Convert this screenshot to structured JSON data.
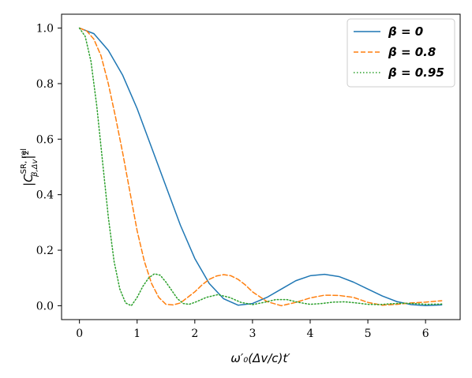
{
  "chart_data": {
    "type": "line",
    "xlabel": "ω′₀(Δv/c)t′",
    "ylabel": "|C^{SR, rel}_{β,Δv}|²",
    "ylabel_parts": {
      "lead": "|C",
      "sup": "SR, rel",
      "sub": "β,Δv",
      "tail": "|²"
    },
    "xlim": [
      -0.31,
      6.6
    ],
    "ylim": [
      -0.05,
      1.05
    ],
    "x_ticks": [
      0,
      1,
      2,
      3,
      4,
      5,
      6
    ],
    "y_ticks": [
      0.0,
      0.2,
      0.4,
      0.6,
      0.8,
      1.0
    ],
    "x_tick_labels": [
      "0",
      "1",
      "2",
      "3",
      "4",
      "5",
      "6"
    ],
    "y_tick_labels": [
      "0.0",
      "0.2",
      "0.4",
      "0.6",
      "0.8",
      "1.0"
    ],
    "grid": false,
    "legend_position": "top-right",
    "series": [
      {
        "name": "β = 0",
        "color": "#1f77b4",
        "style": "solid",
        "x": [
          0,
          0.25,
          0.5,
          0.75,
          1.0,
          1.25,
          1.5,
          1.75,
          2.0,
          2.25,
          2.5,
          2.75,
          3.0,
          3.25,
          3.5,
          3.75,
          4.0,
          4.25,
          4.5,
          4.75,
          5.0,
          5.25,
          5.5,
          5.75,
          6.0,
          6.28
        ],
        "values": [
          1.0,
          0.98,
          0.92,
          0.83,
          0.71,
          0.57,
          0.43,
          0.29,
          0.17,
          0.08,
          0.025,
          0.002,
          0.008,
          0.03,
          0.06,
          0.09,
          0.108,
          0.113,
          0.105,
          0.085,
          0.06,
          0.035,
          0.015,
          0.004,
          0.0005,
          0.003
        ]
      },
      {
        "name": "β = 0.8",
        "color": "#ff7f0e",
        "style": "dashed",
        "x": [
          0,
          0.125,
          0.25,
          0.375,
          0.5,
          0.625,
          0.75,
          0.875,
          1.0,
          1.125,
          1.25,
          1.375,
          1.5,
          1.625,
          1.75,
          1.875,
          2.0,
          2.125,
          2.25,
          2.375,
          2.5,
          2.625,
          2.75,
          2.875,
          3.0,
          3.25,
          3.5,
          3.75,
          4.0,
          4.25,
          4.5,
          4.75,
          5.0,
          5.25,
          5.5,
          5.75,
          6.0,
          6.28
        ],
        "values": [
          1.0,
          0.99,
          0.96,
          0.9,
          0.8,
          0.68,
          0.55,
          0.41,
          0.27,
          0.16,
          0.08,
          0.03,
          0.005,
          0.003,
          0.01,
          0.03,
          0.05,
          0.075,
          0.095,
          0.107,
          0.112,
          0.108,
          0.095,
          0.075,
          0.05,
          0.015,
          0.0,
          0.012,
          0.028,
          0.038,
          0.037,
          0.03,
          0.012,
          0.002,
          0.005,
          0.01,
          0.013,
          0.018
        ]
      },
      {
        "name": "β = 0.95",
        "color": "#2ca02c",
        "style": "dotted",
        "x": [
          0,
          0.1,
          0.2,
          0.3,
          0.4,
          0.5,
          0.6,
          0.7,
          0.8,
          0.9,
          1.0,
          1.1,
          1.2,
          1.3,
          1.4,
          1.5,
          1.6,
          1.7,
          1.8,
          1.9,
          2.0,
          2.2,
          2.4,
          2.6,
          2.8,
          3.0,
          3.2,
          3.4,
          3.6,
          3.8,
          4.0,
          4.2,
          4.4,
          4.6,
          4.8,
          5.0,
          5.2,
          5.4,
          5.6,
          5.8,
          6.0,
          6.28
        ],
        "values": [
          1.0,
          0.97,
          0.88,
          0.72,
          0.52,
          0.32,
          0.16,
          0.06,
          0.01,
          0.0,
          0.03,
          0.07,
          0.1,
          0.115,
          0.11,
          0.085,
          0.055,
          0.025,
          0.008,
          0.005,
          0.012,
          0.03,
          0.04,
          0.03,
          0.012,
          0.004,
          0.012,
          0.022,
          0.022,
          0.012,
          0.005,
          0.008,
          0.013,
          0.014,
          0.01,
          0.005,
          0.004,
          0.007,
          0.009,
          0.008,
          0.005,
          0.006
        ]
      }
    ]
  }
}
